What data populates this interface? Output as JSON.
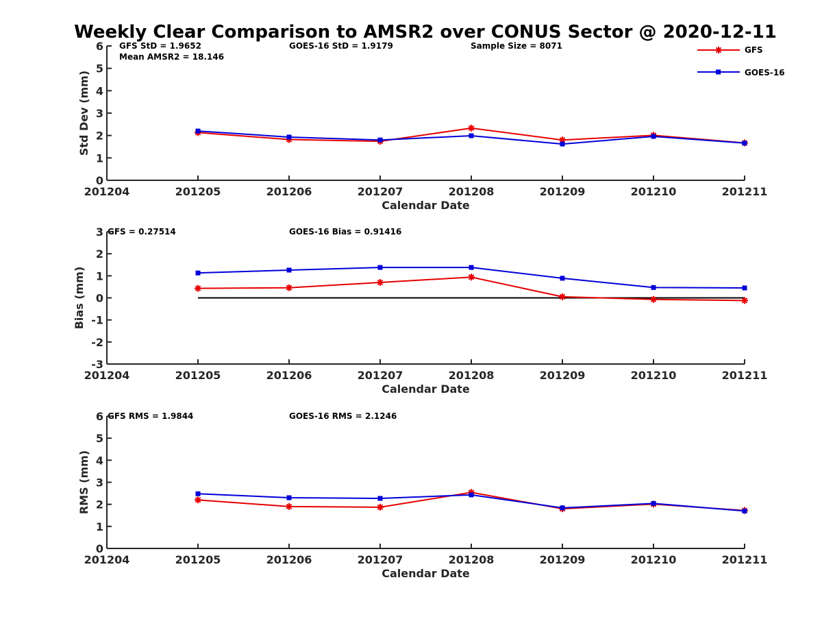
{
  "title": "Weekly Clear Comparison to AMSR2 over CONUS Sector @ 2020-12-11",
  "colors": {
    "gfs": "#e60000",
    "goes": "#0000d9",
    "axis": "#262626",
    "zero_line": "#000000"
  },
  "legend": {
    "placement": "top-right",
    "items": [
      {
        "label": "GFS",
        "color": "#e60000",
        "marker": "asterisk"
      },
      {
        "label": "GOES-16",
        "color": "#0000d9",
        "marker": "square"
      }
    ]
  },
  "chart_data": [
    {
      "type": "line",
      "xlabel": "Calendar Date",
      "ylabel": "Std Dev (mm)",
      "categories": [
        "201204",
        "201205",
        "201206",
        "201207",
        "201208",
        "201209",
        "201210",
        "201211"
      ],
      "ylim": [
        0,
        6
      ],
      "yticks": [
        "0",
        "1",
        "2",
        "3",
        "4",
        "5",
        "6"
      ],
      "grid": false,
      "annotations": [
        "GFS StD = 1.9652",
        "Mean AMSR2 = 18.146",
        "GOES-16 StD = 1.9179",
        "Sample Size = 8071"
      ],
      "series": [
        {
          "name": "GFS",
          "values": [
            null,
            2.13,
            1.82,
            1.74,
            2.33,
            1.8,
            2.01,
            1.67
          ]
        },
        {
          "name": "GOES-16",
          "values": [
            null,
            2.2,
            1.93,
            1.8,
            1.99,
            1.62,
            1.96,
            1.66
          ]
        }
      ]
    },
    {
      "type": "line",
      "xlabel": "Calendar Date",
      "ylabel": "Bias (mm)",
      "categories": [
        "201204",
        "201205",
        "201206",
        "201207",
        "201208",
        "201209",
        "201210",
        "201211"
      ],
      "ylim": [
        -3,
        3
      ],
      "yticks": [
        "-3",
        "-2",
        "-1",
        "0",
        "1",
        "2",
        "3"
      ],
      "grid": false,
      "zero_line": true,
      "annotations": [
        "GFS = 0.27514",
        "GOES-16 Bias  = 0.91416"
      ],
      "series": [
        {
          "name": "GFS",
          "values": [
            null,
            0.43,
            0.46,
            0.7,
            0.94,
            0.05,
            -0.07,
            -0.12
          ]
        },
        {
          "name": "GOES-16",
          "values": [
            null,
            1.13,
            1.26,
            1.38,
            1.38,
            0.89,
            0.47,
            0.45
          ]
        }
      ]
    },
    {
      "type": "line",
      "xlabel": "Calendar Date",
      "ylabel": "RMS (mm)",
      "categories": [
        "201204",
        "201205",
        "201206",
        "201207",
        "201208",
        "201209",
        "201210",
        "201211"
      ],
      "ylim": [
        0,
        6
      ],
      "yticks": [
        "0",
        "1",
        "2",
        "3",
        "4",
        "5",
        "6"
      ],
      "grid": false,
      "annotations": [
        "GFS RMS = 1.9844",
        "GOES-16 RMS = 2.1246"
      ],
      "series": [
        {
          "name": "GFS",
          "values": [
            null,
            2.2,
            1.9,
            1.87,
            2.54,
            1.8,
            2.01,
            1.72
          ]
        },
        {
          "name": "GOES-16",
          "values": [
            null,
            2.48,
            2.3,
            2.27,
            2.43,
            1.84,
            2.04,
            1.7
          ]
        }
      ]
    }
  ]
}
